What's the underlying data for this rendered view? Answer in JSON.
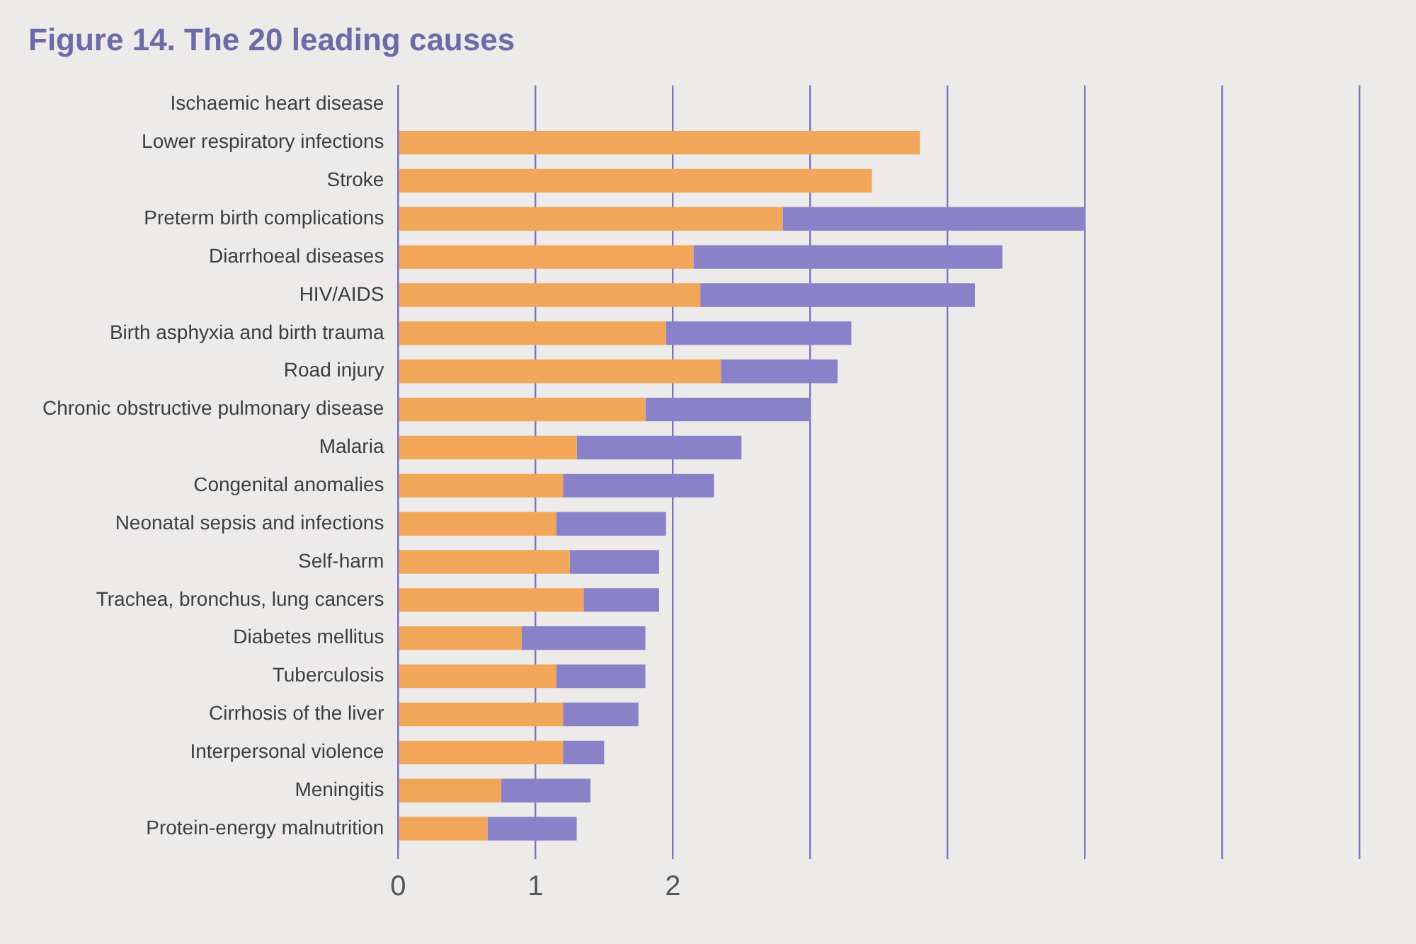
{
  "chart_data": {
    "type": "bar",
    "orientation": "horizontal",
    "stacked": true,
    "title": "Figure 14. The 20 leading causes",
    "categories": [
      "Ischaemic heart disease",
      "Lower respiratory infections",
      "Stroke",
      "Preterm birth complications",
      "Diarrhoeal diseases",
      "HIV/AIDS",
      "Birth asphyxia and birth trauma",
      "Road injury",
      "Chronic obstructive pulmonary disease",
      "Malaria",
      "Congenital anomalies",
      "Neonatal sepsis and infections",
      "Self-harm",
      "Trachea, bronchus, lung cancers",
      "Diabetes mellitus",
      "Tuberculosis",
      "Cirrhosis of the liver",
      "Interpersonal violence",
      "Meningitis",
      "Protein-energy malnutrition"
    ],
    "series": [
      {
        "color": "#f2a65a",
        "values": [
          null,
          3.8,
          3.45,
          2.8,
          2.15,
          2.2,
          1.95,
          2.35,
          1.8,
          1.3,
          1.2,
          1.15,
          1.25,
          1.35,
          0.9,
          1.15,
          1.2,
          1.2,
          0.75,
          0.65
        ]
      },
      {
        "color": "#8a82c8",
        "values": [
          null,
          null,
          null,
          2.2,
          2.25,
          2.0,
          1.35,
          0.85,
          1.2,
          1.2,
          1.1,
          0.8,
          0.65,
          0.55,
          0.9,
          0.65,
          0.55,
          0.3,
          0.65,
          0.65
        ]
      }
    ],
    "xlim": [
      0,
      7
    ],
    "xticks": [
      0,
      1,
      2,
      {
        "value": 3,
        "label": null
      },
      {
        "value": 4,
        "label": null
      },
      {
        "value": 5,
        "label": null
      },
      {
        "value": 6,
        "label": null
      },
      {
        "value": 7,
        "label": null
      }
    ],
    "grid": "x"
  }
}
